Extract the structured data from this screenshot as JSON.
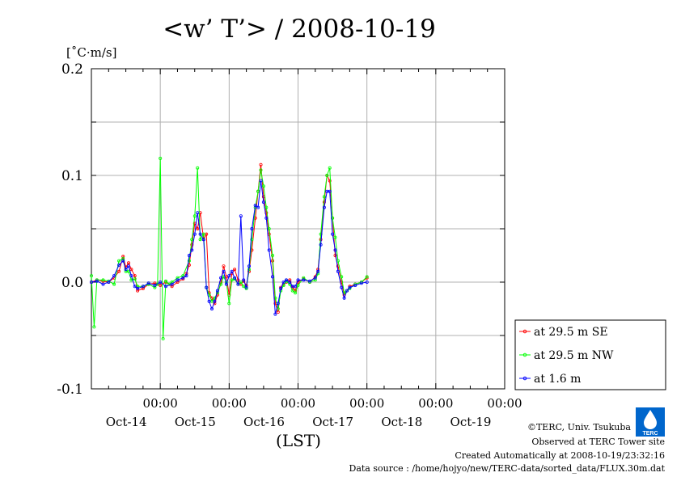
{
  "chart_data": {
    "type": "line",
    "title": "<w’ T’> / 2008-10-19",
    "ylabel": "[˚C·m/s]",
    "xlabel": "(LST)",
    "ylim": [
      -0.1,
      0.2
    ],
    "xlim": [
      0,
      6
    ],
    "x_unit": "days since Oct-13 00:00",
    "yticks": [
      {
        "v": 0.2,
        "label": "0.2"
      },
      {
        "v": 0.1,
        "label": "0.1"
      },
      {
        "v": 0.0,
        "label": "0.0"
      },
      {
        "v": -0.1,
        "label": "-0.1"
      }
    ],
    "xticks": [
      {
        "pos": 1,
        "time": "00:00",
        "date": "Oct-14"
      },
      {
        "pos": 2,
        "time": "00:00",
        "date": "Oct-15"
      },
      {
        "pos": 3,
        "time": "00:00",
        "date": "Oct-16"
      },
      {
        "pos": 4,
        "time": "00:00",
        "date": "Oct-17"
      },
      {
        "pos": 5,
        "time": "00:00",
        "date": "Oct-18"
      },
      {
        "pos": 6,
        "time": "00:00",
        "date": "Oct-19"
      }
    ],
    "grid": true,
    "legend_position": "right-lower",
    "series": [
      {
        "name": "at 29.5 m SE",
        "color": "#ff0000",
        "points": [
          [
            0.0,
            0.0
          ],
          [
            0.08,
            0.002
          ],
          [
            0.17,
            0.001
          ],
          [
            0.25,
            0.0
          ],
          [
            0.33,
            0.004
          ],
          [
            0.4,
            0.01
          ],
          [
            0.46,
            0.024
          ],
          [
            0.5,
            0.014
          ],
          [
            0.54,
            0.018
          ],
          [
            0.58,
            0.012
          ],
          [
            0.63,
            0.006
          ],
          [
            0.67,
            -0.008
          ],
          [
            0.75,
            -0.006
          ],
          [
            0.83,
            -0.002
          ],
          [
            0.92,
            -0.001
          ],
          [
            1.0,
            -0.003
          ],
          [
            1.08,
            0.0
          ],
          [
            1.17,
            -0.004
          ],
          [
            1.25,
            0.0
          ],
          [
            1.33,
            0.003
          ],
          [
            1.38,
            0.008
          ],
          [
            1.42,
            0.016
          ],
          [
            1.46,
            0.035
          ],
          [
            1.5,
            0.055
          ],
          [
            1.54,
            0.05
          ],
          [
            1.58,
            0.065
          ],
          [
            1.63,
            0.04
          ],
          [
            1.67,
            0.045
          ],
          [
            1.71,
            -0.01
          ],
          [
            1.75,
            -0.015
          ],
          [
            1.79,
            -0.02
          ],
          [
            1.83,
            -0.012
          ],
          [
            1.88,
            0.0
          ],
          [
            1.92,
            0.015
          ],
          [
            1.96,
            0.005
          ],
          [
            2.0,
            -0.012
          ],
          [
            2.04,
            0.008
          ],
          [
            2.08,
            0.012
          ],
          [
            2.13,
            0.002
          ],
          [
            2.17,
            -0.002
          ],
          [
            2.21,
            0.001
          ],
          [
            2.25,
            -0.003
          ],
          [
            2.29,
            0.01
          ],
          [
            2.33,
            0.03
          ],
          [
            2.38,
            0.06
          ],
          [
            2.42,
            0.085
          ],
          [
            2.46,
            0.11
          ],
          [
            2.5,
            0.08
          ],
          [
            2.54,
            0.065
          ],
          [
            2.58,
            0.045
          ],
          [
            2.63,
            0.02
          ],
          [
            2.67,
            -0.02
          ],
          [
            2.71,
            -0.028
          ],
          [
            2.75,
            -0.005
          ],
          [
            2.79,
            -0.002
          ],
          [
            2.83,
            0.0
          ],
          [
            2.88,
            0.002
          ],
          [
            2.92,
            -0.005
          ],
          [
            2.96,
            -0.008
          ],
          [
            3.0,
            0.0
          ],
          [
            3.08,
            0.003
          ],
          [
            3.17,
            0.0
          ],
          [
            3.25,
            0.005
          ],
          [
            3.29,
            0.012
          ],
          [
            3.33,
            0.04
          ],
          [
            3.38,
            0.075
          ],
          [
            3.42,
            0.1
          ],
          [
            3.46,
            0.095
          ],
          [
            3.5,
            0.06
          ],
          [
            3.54,
            0.025
          ],
          [
            3.58,
            0.015
          ],
          [
            3.63,
            0.0
          ],
          [
            3.67,
            -0.012
          ],
          [
            3.71,
            -0.008
          ],
          [
            3.75,
            -0.004
          ],
          [
            3.83,
            -0.002
          ],
          [
            3.92,
            0.0
          ],
          [
            4.0,
            0.004
          ]
        ]
      },
      {
        "name": "at 29.5 m NW",
        "color": "#00ff00",
        "points": [
          [
            0.0,
            0.006
          ],
          [
            0.04,
            -0.042
          ],
          [
            0.08,
            0.002
          ],
          [
            0.17,
            0.002
          ],
          [
            0.25,
            0.001
          ],
          [
            0.33,
            -0.002
          ],
          [
            0.4,
            0.02
          ],
          [
            0.46,
            0.022
          ],
          [
            0.5,
            0.01
          ],
          [
            0.54,
            0.01
          ],
          [
            0.58,
            0.002
          ],
          [
            0.63,
            0.003
          ],
          [
            0.67,
            -0.004
          ],
          [
            0.75,
            -0.004
          ],
          [
            0.83,
            -0.002
          ],
          [
            0.92,
            -0.005
          ],
          [
            0.96,
            -0.002
          ],
          [
            1.0,
            0.116
          ],
          [
            1.04,
            -0.053
          ],
          [
            1.08,
            0.001
          ],
          [
            1.13,
            -0.002
          ],
          [
            1.17,
            0.0
          ],
          [
            1.25,
            0.004
          ],
          [
            1.33,
            0.006
          ],
          [
            1.42,
            0.02
          ],
          [
            1.46,
            0.04
          ],
          [
            1.5,
            0.062
          ],
          [
            1.54,
            0.107
          ],
          [
            1.58,
            0.04
          ],
          [
            1.63,
            0.045
          ],
          [
            1.67,
            -0.005
          ],
          [
            1.71,
            -0.012
          ],
          [
            1.75,
            -0.018
          ],
          [
            1.79,
            -0.015
          ],
          [
            1.83,
            -0.01
          ],
          [
            1.88,
            -0.002
          ],
          [
            1.92,
            0.005
          ],
          [
            1.96,
            0.0
          ],
          [
            2.0,
            -0.02
          ],
          [
            2.04,
            0.002
          ],
          [
            2.08,
            0.003
          ],
          [
            2.13,
            -0.002
          ],
          [
            2.17,
            0.0
          ],
          [
            2.21,
            -0.004
          ],
          [
            2.25,
            -0.006
          ],
          [
            2.29,
            0.012
          ],
          [
            2.33,
            0.04
          ],
          [
            2.38,
            0.07
          ],
          [
            2.42,
            0.085
          ],
          [
            2.46,
            0.105
          ],
          [
            2.5,
            0.09
          ],
          [
            2.54,
            0.07
          ],
          [
            2.58,
            0.05
          ],
          [
            2.63,
            0.025
          ],
          [
            2.67,
            -0.015
          ],
          [
            2.71,
            -0.025
          ],
          [
            2.75,
            -0.008
          ],
          [
            2.79,
            -0.003
          ],
          [
            2.83,
            0.001
          ],
          [
            2.88,
            -0.002
          ],
          [
            2.92,
            -0.008
          ],
          [
            2.96,
            -0.01
          ],
          [
            3.0,
            -0.003
          ],
          [
            3.08,
            0.004
          ],
          [
            3.17,
            0.0
          ],
          [
            3.25,
            0.002
          ],
          [
            3.29,
            0.008
          ],
          [
            3.33,
            0.045
          ],
          [
            3.38,
            0.08
          ],
          [
            3.42,
            0.1
          ],
          [
            3.46,
            0.107
          ],
          [
            3.5,
            0.06
          ],
          [
            3.54,
            0.042
          ],
          [
            3.58,
            0.02
          ],
          [
            3.63,
            0.005
          ],
          [
            3.67,
            -0.01
          ],
          [
            3.71,
            -0.008
          ],
          [
            3.75,
            -0.006
          ],
          [
            3.83,
            -0.002
          ],
          [
            3.92,
            0.0
          ],
          [
            4.0,
            0.005
          ]
        ]
      },
      {
        "name": "at 1.6 m",
        "color": "#0000ff",
        "points": [
          [
            0.0,
            0.0
          ],
          [
            0.08,
            0.001
          ],
          [
            0.17,
            -0.002
          ],
          [
            0.25,
            0.0
          ],
          [
            0.33,
            0.006
          ],
          [
            0.4,
            0.016
          ],
          [
            0.46,
            0.02
          ],
          [
            0.5,
            0.012
          ],
          [
            0.54,
            0.015
          ],
          [
            0.58,
            0.006
          ],
          [
            0.63,
            -0.004
          ],
          [
            0.67,
            -0.006
          ],
          [
            0.75,
            -0.004
          ],
          [
            0.83,
            -0.001
          ],
          [
            0.92,
            -0.003
          ],
          [
            1.0,
            0.0
          ],
          [
            1.08,
            -0.004
          ],
          [
            1.17,
            -0.002
          ],
          [
            1.25,
            0.002
          ],
          [
            1.33,
            0.004
          ],
          [
            1.38,
            0.006
          ],
          [
            1.42,
            0.025
          ],
          [
            1.46,
            0.03
          ],
          [
            1.5,
            0.045
          ],
          [
            1.54,
            0.065
          ],
          [
            1.58,
            0.045
          ],
          [
            1.63,
            0.04
          ],
          [
            1.67,
            -0.005
          ],
          [
            1.71,
            -0.018
          ],
          [
            1.75,
            -0.025
          ],
          [
            1.79,
            -0.018
          ],
          [
            1.83,
            -0.008
          ],
          [
            1.88,
            0.004
          ],
          [
            1.92,
            0.01
          ],
          [
            1.96,
            -0.002
          ],
          [
            2.0,
            0.006
          ],
          [
            2.04,
            0.01
          ],
          [
            2.08,
            0.004
          ],
          [
            2.13,
            -0.002
          ],
          [
            2.17,
            0.062
          ],
          [
            2.21,
            0.002
          ],
          [
            2.25,
            -0.005
          ],
          [
            2.29,
            0.015
          ],
          [
            2.33,
            0.05
          ],
          [
            2.38,
            0.072
          ],
          [
            2.42,
            0.07
          ],
          [
            2.46,
            0.095
          ],
          [
            2.5,
            0.075
          ],
          [
            2.54,
            0.06
          ],
          [
            2.58,
            0.03
          ],
          [
            2.63,
            0.005
          ],
          [
            2.67,
            -0.03
          ],
          [
            2.71,
            -0.02
          ],
          [
            2.75,
            -0.006
          ],
          [
            2.79,
            0.0
          ],
          [
            2.83,
            0.002
          ],
          [
            2.88,
            0.0
          ],
          [
            2.92,
            -0.004
          ],
          [
            2.96,
            -0.004
          ],
          [
            3.0,
            0.002
          ],
          [
            3.08,
            0.002
          ],
          [
            3.17,
            0.001
          ],
          [
            3.25,
            0.004
          ],
          [
            3.29,
            0.01
          ],
          [
            3.33,
            0.035
          ],
          [
            3.38,
            0.07
          ],
          [
            3.42,
            0.085
          ],
          [
            3.46,
            0.085
          ],
          [
            3.5,
            0.045
          ],
          [
            3.54,
            0.03
          ],
          [
            3.58,
            0.01
          ],
          [
            3.63,
            -0.005
          ],
          [
            3.67,
            -0.015
          ],
          [
            3.71,
            -0.008
          ],
          [
            3.75,
            -0.005
          ],
          [
            3.83,
            -0.003
          ],
          [
            3.92,
            -0.001
          ],
          [
            4.0,
            0.0
          ]
        ]
      }
    ]
  },
  "logo": {
    "text": "TERC",
    "color": "#0066cc"
  },
  "credits": [
    "©TERC, Univ. Tsukuba",
    "Observed at TERC Tower site",
    "Created Automatically at 2008-10-19/23:32:16",
    "Data source : /home/hojyo/new/TERC-data/sorted_data/FLUX.30m.dat"
  ]
}
